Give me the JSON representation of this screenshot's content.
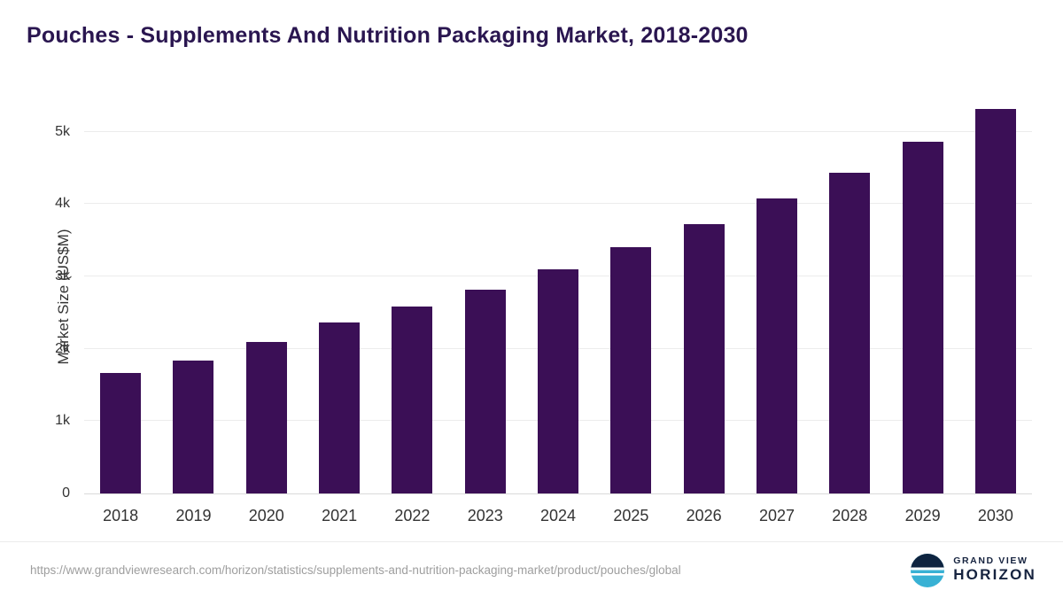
{
  "title": "Pouches - Supplements And Nutrition Packaging Market, 2018-2030",
  "chart_data": {
    "type": "bar",
    "title": "Pouches - Supplements And Nutrition Packaging Market, 2018-2030",
    "categories": [
      "2018",
      "2019",
      "2020",
      "2021",
      "2022",
      "2023",
      "2024",
      "2025",
      "2026",
      "2027",
      "2028",
      "2029",
      "2030"
    ],
    "values": [
      1660,
      1840,
      2100,
      2360,
      2580,
      2820,
      3100,
      3400,
      3730,
      4080,
      4430,
      4860,
      5320
    ],
    "xlabel": "",
    "ylabel": "Market Size (US$M)",
    "ylim": [
      0,
      5500
    ],
    "yticks": [
      {
        "value": 0,
        "label": "0"
      },
      {
        "value": 1000,
        "label": "1k"
      },
      {
        "value": 2000,
        "label": "2k"
      },
      {
        "value": 3000,
        "label": "3k"
      },
      {
        "value": 4000,
        "label": "4k"
      },
      {
        "value": 5000,
        "label": "5k"
      }
    ],
    "grid": true,
    "legend_position": "none",
    "bar_color": "#3b0f56"
  },
  "footer": {
    "source_url": "https://www.grandviewresearch.com/horizon/statistics/supplements-and-nutrition-packaging-market/product/pouches/global",
    "brand_top": "GRAND VIEW",
    "brand_bottom": "HORIZON"
  },
  "colors": {
    "title_text": "#2a1650",
    "axis_text": "#333333",
    "gridline": "#ececec",
    "logo_navy": "#0e2440",
    "logo_teal": "#38b1d4"
  }
}
